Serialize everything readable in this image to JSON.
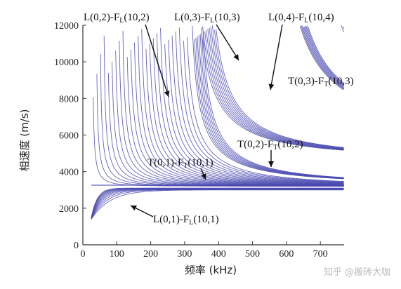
{
  "chart_data": {
    "type": "line",
    "xlabel": "频率 (kHz)",
    "ylabel": "相速度 (m/s)",
    "xlim": [
      0,
      770
    ],
    "ylim": [
      0,
      12000
    ],
    "x_ticks": [
      "0",
      "100",
      "200",
      "300",
      "400",
      "500",
      "600",
      "700"
    ],
    "y_ticks": [
      "0",
      "2000",
      "4000",
      "6000",
      "8000",
      "10000",
      "12000"
    ],
    "grid": false,
    "line_color": "#4a4ab0",
    "annotations": [
      {
        "mode": "L(0,1)",
        "family": "F",
        "sub": "L",
        "order": "(10,1)",
        "arrow_to": [
          140,
          2150
        ]
      },
      {
        "mode": "T(0,1)",
        "family": "F",
        "sub": "T",
        "order": "(10,1)",
        "arrow_to": [
          360,
          3270
        ]
      },
      {
        "mode": "T(0,2)",
        "family": "F",
        "sub": "T",
        "order": "(10,2)",
        "arrow_to": [
          560,
          4200
        ]
      },
      {
        "mode": "L(0,2)",
        "family": "F",
        "sub": "L",
        "order": "(10,2)",
        "arrow_to": [
          265,
          7900
        ]
      },
      {
        "mode": "L(0,3)",
        "family": "F",
        "sub": "L",
        "order": "(10,3)",
        "arrow_to": [
          470,
          9900
        ]
      },
      {
        "mode": "L(0,4)",
        "family": "F",
        "sub": "L",
        "order": "(10,4)",
        "arrow_to": [
          565,
          8200
        ]
      },
      {
        "mode": "T(0,3)",
        "family": "F",
        "sub": "T",
        "order": "(10,3)",
        "arrow_to": null
      }
    ],
    "families": [
      {
        "name": "L(0,1)-FL(10,1)",
        "kind": "fundamental",
        "count": 11,
        "start": 1400,
        "plateau": 3000
      },
      {
        "name": "T(0,1)-FT(10,1)",
        "kind": "flat",
        "count": 1,
        "value": 3260
      },
      {
        "name": "L(0,2)-FL(10,2)",
        "kind": "cutoff",
        "count": 26,
        "cutoff_first": 28,
        "cutoff_last": 295,
        "asymptote": 3200
      },
      {
        "name": "T(0,2)-FT(10,2)",
        "kind": "cutoff",
        "count": 8,
        "cutoff_first": 310,
        "cutoff_last": 340,
        "asymptote": 3300
      },
      {
        "name": "L(0,3)-FL(10,3)",
        "kind": "cutoff",
        "count": 10,
        "cutoff_first": 320,
        "cutoff_last": 360,
        "asymptote": 4700
      },
      {
        "name": "L(0,4)-FL(10,4)",
        "kind": "cutoff",
        "count": 9,
        "cutoff_first": 560,
        "cutoff_last": 580,
        "asymptote": 5800
      },
      {
        "name": "T(0,3)-FT(10,3)",
        "kind": "descending",
        "count": 8,
        "cutoff_first": 663,
        "cutoff_last": 690,
        "asymptote": 5900
      }
    ]
  },
  "watermark": "知乎 @搬砖大咖"
}
